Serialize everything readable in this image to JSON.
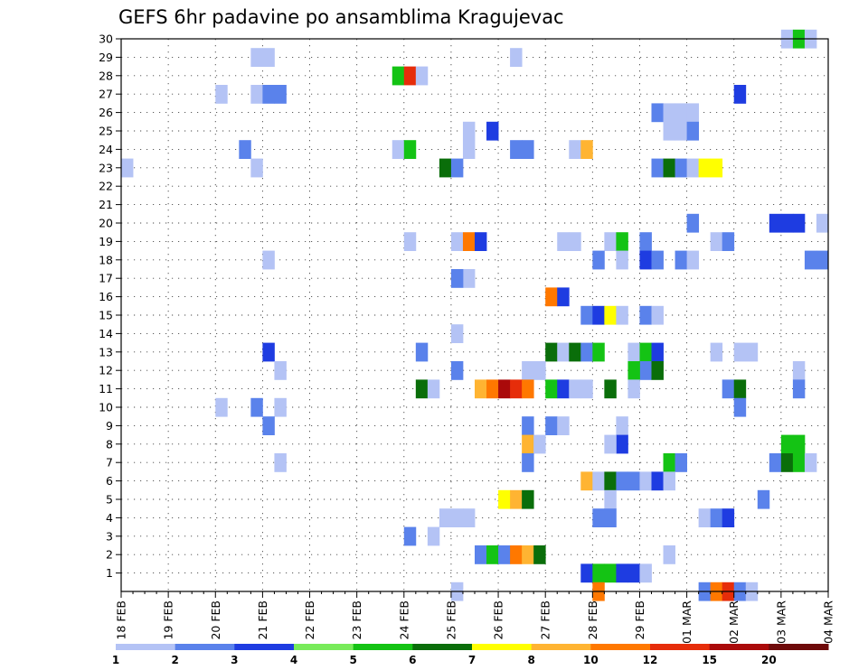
{
  "chart_data": {
    "type": "heatmap",
    "title": "GEFS 6hr padavine po ansamblima Kragujevac",
    "xlabel": "",
    "ylabel": "",
    "x_tick_labels": [
      "18 FEB",
      "19 FEB",
      "20 FEB",
      "21 FEB",
      "22 FEB",
      "23 FEB",
      "24 FEB",
      "25 FEB",
      "26 FEB",
      "27 FEB",
      "28 FEB",
      "29 FEB",
      "01 MAR",
      "02 MAR",
      "03 MAR",
      "04 MAR"
    ],
    "x_range_steps": [
      0,
      60
    ],
    "steps_per_day": 4,
    "y_tick_labels": [
      "1",
      "2",
      "3",
      "4",
      "5",
      "6",
      "7",
      "8",
      "9",
      "10",
      "11",
      "12",
      "13",
      "14",
      "15",
      "16",
      "17",
      "18",
      "19",
      "20",
      "21",
      "22",
      "23",
      "24",
      "25",
      "26",
      "27",
      "28",
      "29",
      "30"
    ],
    "y_range_members": [
      0,
      30
    ],
    "grid": true,
    "legend_placement": "bottom",
    "legend_thresholds": [
      1,
      2,
      3,
      4,
      5,
      6,
      7,
      8,
      10,
      12,
      15,
      20
    ],
    "legend_label_values": [
      "1",
      "2",
      "3",
      "4",
      "5",
      "6",
      "7",
      "8",
      "10",
      "12",
      "15",
      "20"
    ],
    "legend_colors": [
      "#b4c3f5",
      "#5a82eb",
      "#1e3ce1",
      "#78eb5a",
      "#14c314",
      "#0a6e0a",
      "#ffff00",
      "#ffb432",
      "#ff7800",
      "#e62d0a",
      "#aa0a0a",
      "#6e0a0a"
    ],
    "cells_note": "each cell: [time_step (6h steps from 18 FEB 00Z), ensemble_member, color_level_index 0-11]",
    "cells": [
      [
        0,
        23,
        0
      ],
      [
        11,
        29,
        0
      ],
      [
        12,
        29,
        0
      ],
      [
        8,
        27,
        0
      ],
      [
        11,
        27,
        0
      ],
      [
        12,
        27,
        1
      ],
      [
        13,
        27,
        1
      ],
      [
        10,
        24,
        1
      ],
      [
        11,
        23,
        0
      ],
      [
        23,
        28,
        4
      ],
      [
        24,
        28,
        9
      ],
      [
        25,
        28,
        0
      ],
      [
        33,
        29,
        0
      ],
      [
        29,
        25,
        0
      ],
      [
        31,
        25,
        2
      ],
      [
        29,
        24,
        0
      ],
      [
        33,
        24,
        1
      ],
      [
        34,
        24,
        1
      ],
      [
        38,
        24,
        0
      ],
      [
        39,
        24,
        7
      ],
      [
        23,
        24,
        0
      ],
      [
        24,
        24,
        4
      ],
      [
        27,
        23,
        5
      ],
      [
        28,
        23,
        1
      ],
      [
        45,
        26,
        1
      ],
      [
        46,
        26,
        0
      ],
      [
        47,
        26,
        0
      ],
      [
        48,
        26,
        0
      ],
      [
        47,
        25,
        0
      ],
      [
        46,
        25,
        0
      ],
      [
        48,
        25,
        1
      ],
      [
        52,
        27,
        2
      ],
      [
        45,
        23,
        1
      ],
      [
        46,
        23,
        5
      ],
      [
        47,
        23,
        1
      ],
      [
        48,
        23,
        0
      ],
      [
        49,
        23,
        6
      ],
      [
        50,
        23,
        6
      ],
      [
        56,
        30,
        0
      ],
      [
        57,
        30,
        4
      ],
      [
        58,
        30,
        0
      ],
      [
        48,
        20,
        1
      ],
      [
        55,
        20,
        2
      ],
      [
        56,
        20,
        2
      ],
      [
        57,
        20,
        2
      ],
      [
        59,
        20,
        0
      ],
      [
        24,
        19,
        0
      ],
      [
        28,
        19,
        0
      ],
      [
        29,
        19,
        8
      ],
      [
        30,
        19,
        2
      ],
      [
        37,
        19,
        0
      ],
      [
        38,
        19,
        0
      ],
      [
        41,
        19,
        0
      ],
      [
        42,
        19,
        4
      ],
      [
        44,
        19,
        1
      ],
      [
        50,
        19,
        0
      ],
      [
        51,
        19,
        1
      ],
      [
        12,
        18,
        0
      ],
      [
        40,
        18,
        1
      ],
      [
        42,
        18,
        0
      ],
      [
        44,
        18,
        2
      ],
      [
        45,
        18,
        1
      ],
      [
        47,
        18,
        1
      ],
      [
        48,
        18,
        0
      ],
      [
        59,
        18,
        1
      ],
      [
        58,
        18,
        1
      ],
      [
        29,
        17,
        0
      ],
      [
        28,
        17,
        1
      ],
      [
        36,
        16,
        8
      ],
      [
        37,
        16,
        2
      ],
      [
        39,
        15,
        1
      ],
      [
        40,
        15,
        2
      ],
      [
        41,
        15,
        6
      ],
      [
        42,
        15,
        0
      ],
      [
        44,
        15,
        1
      ],
      [
        45,
        15,
        0
      ],
      [
        28,
        14,
        0
      ],
      [
        25,
        13,
        1
      ],
      [
        12,
        13,
        2
      ],
      [
        36,
        13,
        5
      ],
      [
        37,
        13,
        0
      ],
      [
        38,
        13,
        5
      ],
      [
        39,
        13,
        1
      ],
      [
        40,
        13,
        4
      ],
      [
        43,
        13,
        0
      ],
      [
        44,
        13,
        4
      ],
      [
        45,
        13,
        2
      ],
      [
        50,
        13,
        0
      ],
      [
        52,
        13,
        0
      ],
      [
        53,
        13,
        0
      ],
      [
        44,
        12,
        1
      ],
      [
        45,
        12,
        5
      ],
      [
        43,
        12,
        4
      ],
      [
        34,
        12,
        0
      ],
      [
        35,
        12,
        0
      ],
      [
        28,
        12,
        1
      ],
      [
        13,
        12,
        0
      ],
      [
        57,
        12,
        0
      ],
      [
        25,
        11,
        5
      ],
      [
        26,
        11,
        0
      ],
      [
        30,
        11,
        7
      ],
      [
        31,
        11,
        8
      ],
      [
        32,
        11,
        10
      ],
      [
        33,
        11,
        9
      ],
      [
        34,
        11,
        8
      ],
      [
        36,
        11,
        4
      ],
      [
        37,
        11,
        2
      ],
      [
        38,
        11,
        0
      ],
      [
        39,
        11,
        0
      ],
      [
        41,
        11,
        5
      ],
      [
        43,
        11,
        0
      ],
      [
        51,
        11,
        1
      ],
      [
        52,
        11,
        5
      ],
      [
        57,
        11,
        1
      ],
      [
        8,
        10,
        0
      ],
      [
        11,
        10,
        1
      ],
      [
        13,
        10,
        0
      ],
      [
        52,
        10,
        1
      ],
      [
        12,
        9,
        1
      ],
      [
        34,
        9,
        1
      ],
      [
        36,
        9,
        1
      ],
      [
        37,
        9,
        0
      ],
      [
        42,
        9,
        0
      ],
      [
        34,
        8,
        7
      ],
      [
        35,
        8,
        0
      ],
      [
        42,
        8,
        2
      ],
      [
        41,
        8,
        0
      ],
      [
        56,
        8,
        4
      ],
      [
        57,
        8,
        4
      ],
      [
        13,
        7,
        0
      ],
      [
        34,
        7,
        1
      ],
      [
        46,
        7,
        4
      ],
      [
        47,
        7,
        1
      ],
      [
        55,
        7,
        1
      ],
      [
        56,
        7,
        5
      ],
      [
        57,
        7,
        4
      ],
      [
        58,
        7,
        0
      ],
      [
        39,
        6,
        7
      ],
      [
        40,
        6,
        0
      ],
      [
        41,
        6,
        5
      ],
      [
        42,
        6,
        1
      ],
      [
        43,
        6,
        1
      ],
      [
        44,
        6,
        0
      ],
      [
        45,
        6,
        2
      ],
      [
        46,
        6,
        0
      ],
      [
        32,
        5,
        6
      ],
      [
        33,
        5,
        7
      ],
      [
        34,
        5,
        5
      ],
      [
        41,
        5,
        0
      ],
      [
        54,
        5,
        1
      ],
      [
        27,
        4,
        0
      ],
      [
        28,
        4,
        0
      ],
      [
        29,
        4,
        0
      ],
      [
        40,
        4,
        1
      ],
      [
        41,
        4,
        1
      ],
      [
        49,
        4,
        0
      ],
      [
        50,
        4,
        1
      ],
      [
        51,
        4,
        2
      ],
      [
        24,
        3,
        1
      ],
      [
        26,
        3,
        0
      ],
      [
        46,
        2,
        0
      ],
      [
        30,
        2,
        1
      ],
      [
        31,
        2,
        4
      ],
      [
        32,
        2,
        1
      ],
      [
        33,
        2,
        8
      ],
      [
        34,
        2,
        7
      ],
      [
        35,
        2,
        5
      ],
      [
        39,
        1,
        2
      ],
      [
        40,
        1,
        4
      ],
      [
        41,
        1,
        4
      ],
      [
        42,
        1,
        2
      ],
      [
        43,
        1,
        2
      ],
      [
        44,
        1,
        0
      ],
      [
        28,
        0,
        0
      ],
      [
        40,
        0,
        8
      ],
      [
        49,
        0,
        1
      ],
      [
        50,
        0,
        8
      ],
      [
        51,
        0,
        9
      ],
      [
        52,
        0,
        1
      ],
      [
        53,
        0,
        0
      ]
    ]
  }
}
